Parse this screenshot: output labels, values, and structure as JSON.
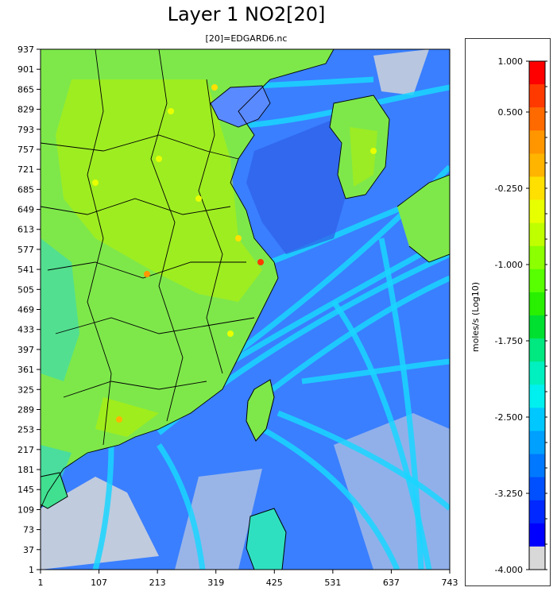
{
  "title": "Layer 1 NO2[20]",
  "subtitle": "[20]=EDGARD6.nc",
  "chart_data": {
    "type": "heatmap",
    "title": "Layer 1 NO2[20]",
    "subtitle": "[20]=EDGARD6.nc",
    "x_ticks": [
      "1",
      "107",
      "213",
      "319",
      "425",
      "531",
      "637",
      "743"
    ],
    "y_ticks": [
      "1",
      "37",
      "73",
      "109",
      "145",
      "181",
      "217",
      "253",
      "289",
      "325",
      "361",
      "397",
      "433",
      "469",
      "505",
      "541",
      "577",
      "613",
      "649",
      "685",
      "721",
      "757",
      "793",
      "829",
      "865",
      "901",
      "937"
    ],
    "xlim": [
      1,
      743
    ],
    "ylim": [
      1,
      937
    ],
    "colorbar": {
      "label": "moles/s (Log10)",
      "range": [
        -4.0,
        1.0
      ],
      "tick_labels": [
        "1.000",
        "0.500",
        "-0.250",
        "-1.000",
        "-1.750",
        "-2.500",
        "-3.250",
        "-4.000"
      ],
      "tick_values": [
        1.0,
        0.5,
        -0.25,
        -1.0,
        -1.75,
        -2.5,
        -3.25,
        -4.0
      ],
      "bands": [
        "#ff0000",
        "#ff3a00",
        "#ff6a00",
        "#ff9600",
        "#ffb400",
        "#ffe000",
        "#e8ff00",
        "#c0ff00",
        "#8cff00",
        "#58ff00",
        "#28f000",
        "#00e030",
        "#00e880",
        "#00f0c0",
        "#00f0f0",
        "#00c8ff",
        "#00a0ff",
        "#0078ff",
        "#0050ff",
        "#0028ff",
        "#0000ff",
        "#d8d8d8"
      ]
    },
    "colors": {
      "land": "#7ee84a",
      "land_bright": "#b8f000",
      "ocean_low": "#3a7fff",
      "ocean_mid": "#1ad6ff",
      "no_data": "#d8d8d8",
      "border": "#000000"
    }
  }
}
